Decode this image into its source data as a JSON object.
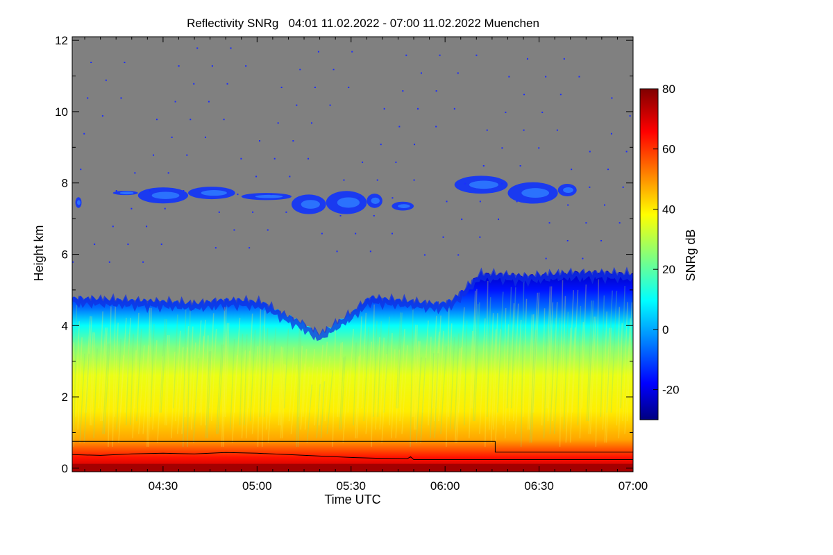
{
  "chart_data": {
    "type": "heatmap",
    "title": "Reflectivity SNRg   04:01 11.02.2022 - 07:00 11.02.2022 Muenchen",
    "xlabel": "Time UTC",
    "ylabel": "Height km",
    "x_range_minutes": [
      241,
      420
    ],
    "x_ticks": [
      {
        "minute": 270,
        "label": "04:30"
      },
      {
        "minute": 300,
        "label": "05:00"
      },
      {
        "minute": 330,
        "label": "05:30"
      },
      {
        "minute": 360,
        "label": "06:00"
      },
      {
        "minute": 390,
        "label": "06:30"
      },
      {
        "minute": 420,
        "label": "07:00"
      }
    ],
    "ylim": [
      -0.1,
      12.1
    ],
    "y_ticks": [
      0,
      2,
      4,
      6,
      8,
      10,
      12
    ],
    "background_color": "#808080",
    "colorbar": {
      "label": "SNRg dB",
      "range": [
        -30,
        80
      ],
      "ticks": [
        -20,
        0,
        20,
        40,
        60,
        80
      ]
    },
    "cloud_top_profile": [
      [
        241,
        4.78
      ],
      [
        250,
        4.75
      ],
      [
        258,
        4.72
      ],
      [
        265,
        4.7
      ],
      [
        272,
        4.68
      ],
      [
        280,
        4.62
      ],
      [
        288,
        4.72
      ],
      [
        295,
        4.72
      ],
      [
        302,
        4.65
      ],
      [
        308,
        4.35
      ],
      [
        314,
        4.1
      ],
      [
        320,
        3.75
      ],
      [
        325,
        4.05
      ],
      [
        330,
        4.35
      ],
      [
        336,
        4.8
      ],
      [
        342,
        4.75
      ],
      [
        348,
        4.7
      ],
      [
        353,
        4.65
      ],
      [
        358,
        4.62
      ],
      [
        362,
        4.7
      ],
      [
        366,
        5.0
      ],
      [
        371,
        5.45
      ],
      [
        378,
        5.45
      ],
      [
        386,
        5.4
      ],
      [
        394,
        5.45
      ],
      [
        402,
        5.5
      ],
      [
        410,
        5.5
      ],
      [
        420,
        5.45
      ]
    ],
    "upper_cloud_layer": [
      {
        "x": [
          242,
          244
        ],
        "y_center": 7.45,
        "thickness": 0.3
      },
      {
        "x": [
          254,
          262
        ],
        "y_center": 7.72,
        "thickness": 0.12
      },
      {
        "x": [
          262,
          278
        ],
        "y_center": 7.65,
        "thickness": 0.45
      },
      {
        "x": [
          278,
          293
        ],
        "y_center": 7.72,
        "thickness": 0.35
      },
      {
        "x": [
          295,
          311
        ],
        "y_center": 7.62,
        "thickness": 0.2
      },
      {
        "x": [
          311,
          322
        ],
        "y_center": 7.4,
        "thickness": 0.55
      },
      {
        "x": [
          322,
          335
        ],
        "y_center": 7.45,
        "thickness": 0.65
      },
      {
        "x": [
          335,
          340
        ],
        "y_center": 7.5,
        "thickness": 0.4
      },
      {
        "x": [
          343,
          350
        ],
        "y_center": 7.35,
        "thickness": 0.25
      },
      {
        "x": [
          363,
          380
        ],
        "y_center": 7.95,
        "thickness": 0.5
      },
      {
        "x": [
          380,
          396
        ],
        "y_center": 7.72,
        "thickness": 0.6
      },
      {
        "x": [
          396,
          402
        ],
        "y_center": 7.8,
        "thickness": 0.35
      }
    ],
    "reflectivity_profile_db": [
      [
        0.0,
        72
      ],
      [
        0.3,
        64
      ],
      [
        0.8,
        48
      ],
      [
        1.6,
        40
      ],
      [
        2.6,
        36
      ],
      [
        3.4,
        24
      ],
      [
        4.0,
        10
      ],
      [
        4.5,
        -6
      ],
      [
        5.0,
        -16
      ],
      [
        5.5,
        -24
      ]
    ],
    "boundary_line_upper": [
      [
        241,
        0.75
      ],
      [
        376,
        0.75
      ],
      [
        376,
        0.45
      ],
      [
        420,
        0.45
      ]
    ],
    "boundary_line_lower": [
      [
        241,
        0.38
      ],
      [
        250,
        0.36
      ],
      [
        260,
        0.4
      ],
      [
        270,
        0.42
      ],
      [
        280,
        0.4
      ],
      [
        290,
        0.44
      ],
      [
        300,
        0.42
      ],
      [
        310,
        0.38
      ],
      [
        320,
        0.34
      ],
      [
        330,
        0.3
      ],
      [
        338,
        0.28
      ],
      [
        348,
        0.27
      ],
      [
        349,
        0.32
      ],
      [
        350,
        0.24
      ],
      [
        360,
        0.24
      ],
      [
        376,
        0.24
      ],
      [
        420,
        0.24
      ]
    ]
  }
}
